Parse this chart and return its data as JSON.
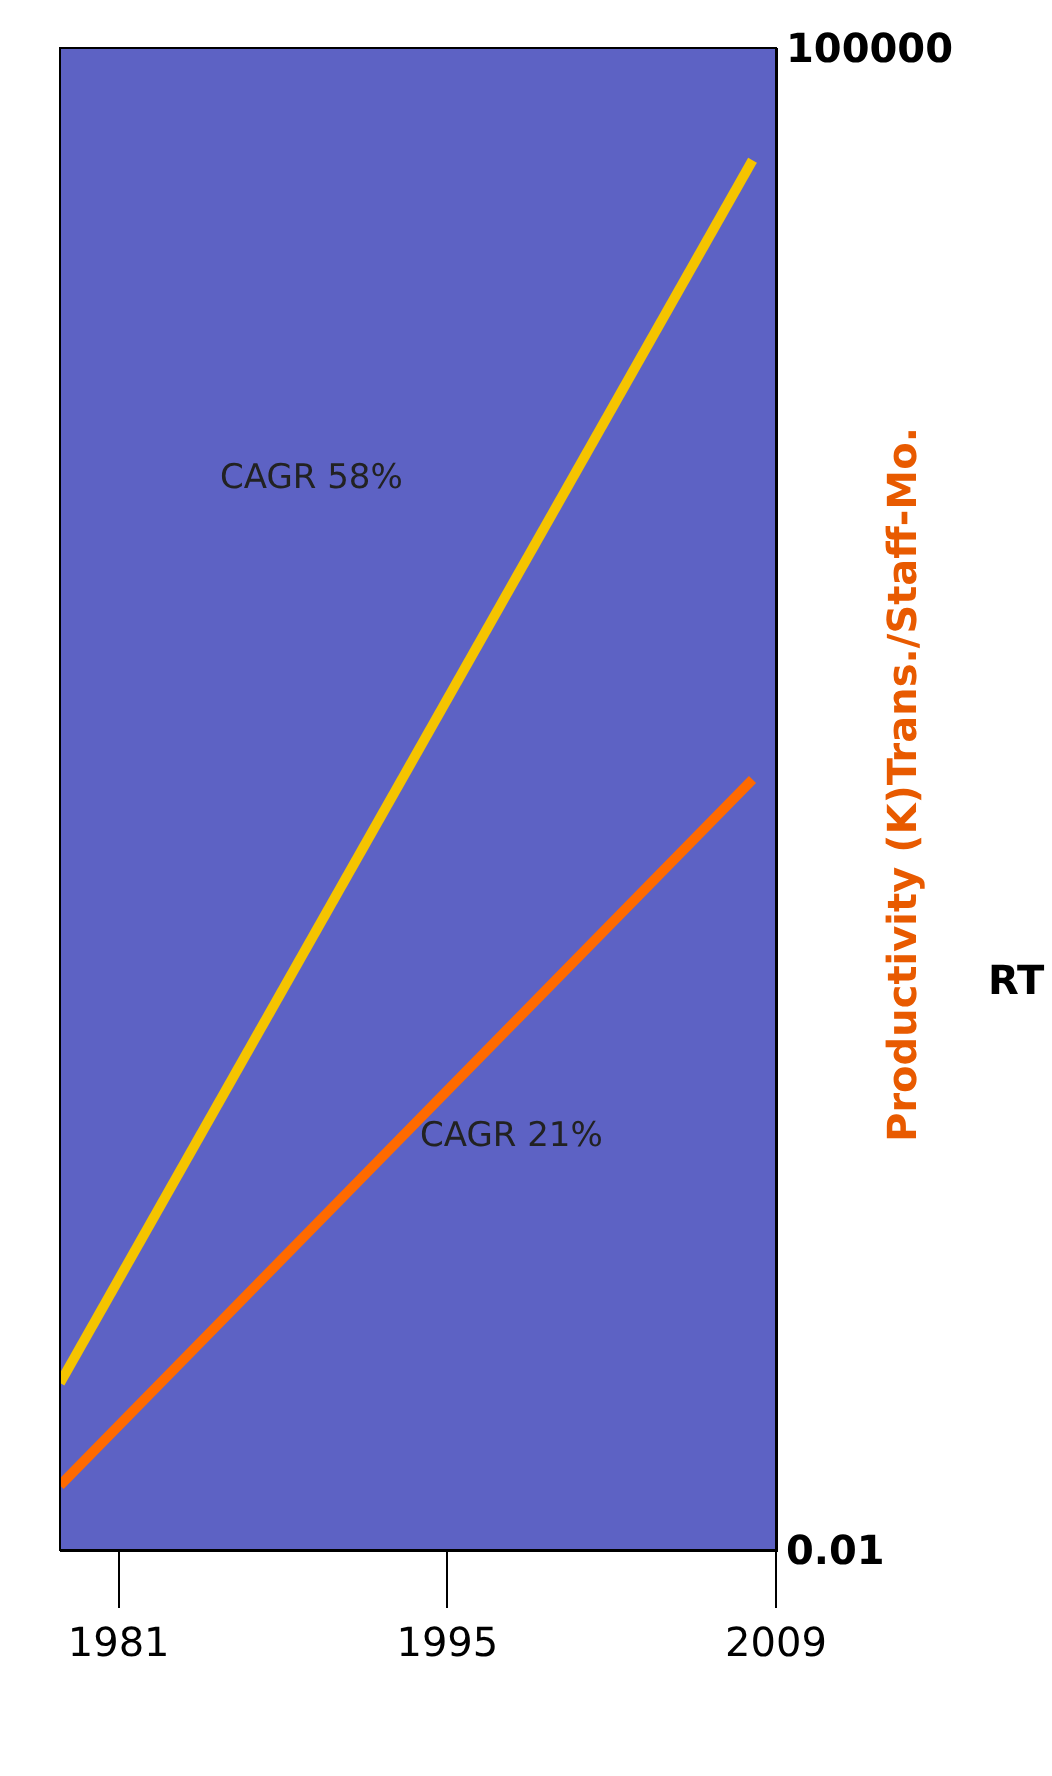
{
  "chart_data": {
    "type": "line",
    "ylabel": "Productivity (K)Trans./Staff-Mo.",
    "x": [
      1978.5,
      2008
    ],
    "series": [
      {
        "color": "#f5c400",
        "values": [
          0.06,
          30000
        ]
      },
      {
        "color": "#ff6a00",
        "values": [
          0.02,
          39
        ]
      }
    ],
    "xlim": [
      1978.5,
      2009
    ],
    "xticks": [
      1981,
      1995,
      2009
    ],
    "ylim": [
      0.01,
      100000
    ],
    "yticks": [
      0.01,
      100000
    ],
    "log": "y",
    "grid": false,
    "legend": false,
    "marker": "none",
    "line_style": "solid",
    "annotations": [
      "CAGR 58%",
      "CAGR 21%",
      "RT"
    ]
  }
}
